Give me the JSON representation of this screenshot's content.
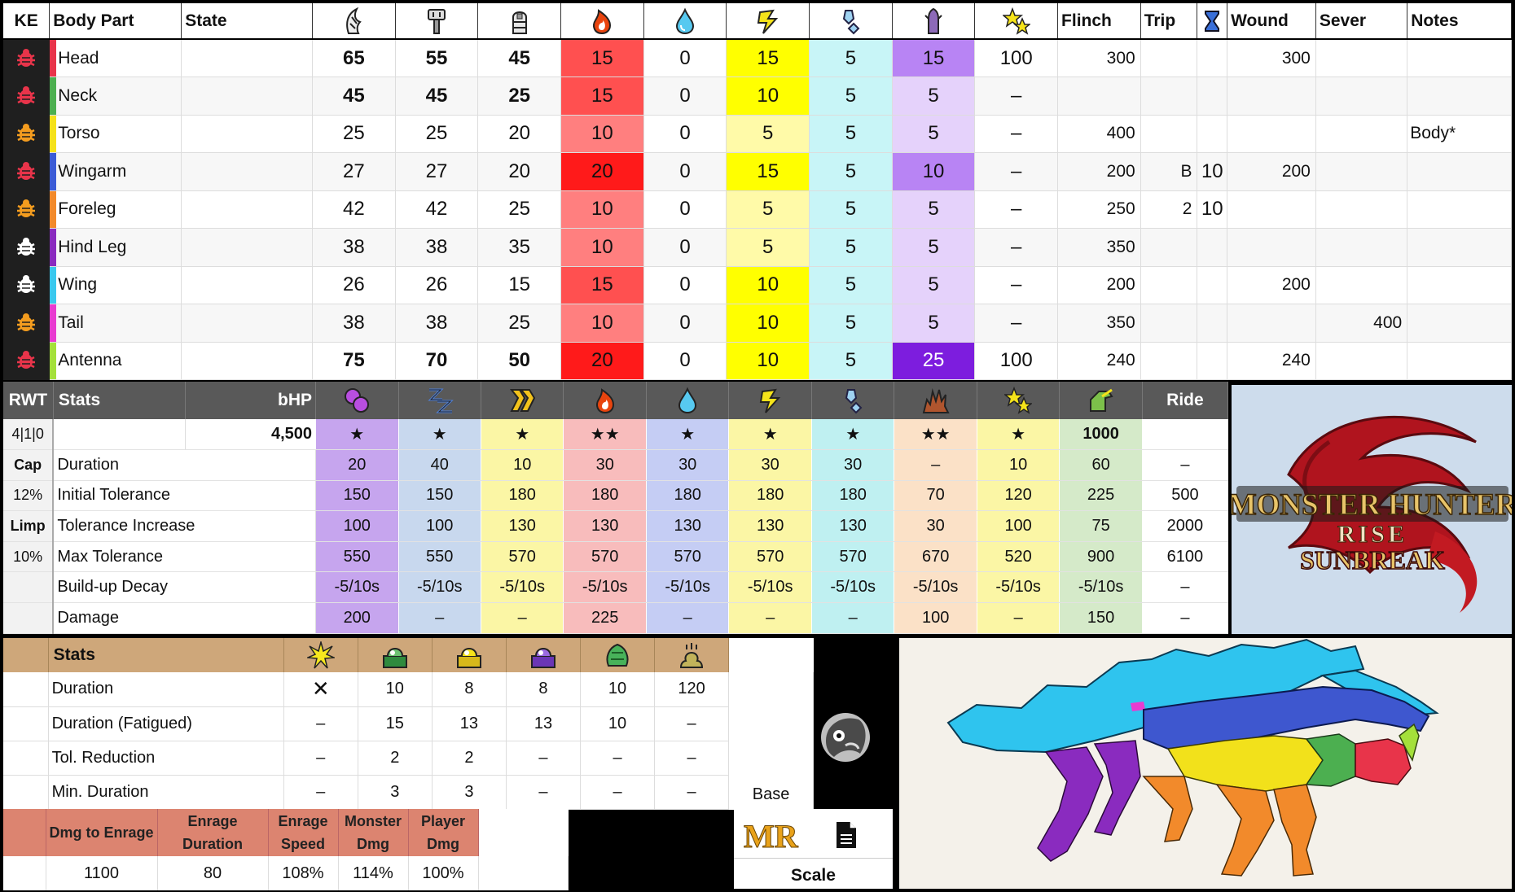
{
  "hitzone": {
    "headers": {
      "ke": "KE",
      "body_part": "Body Part",
      "state": "State",
      "flinch": "Flinch",
      "trip": "Trip",
      "wound": "Wound",
      "sever": "Sever",
      "notes": "Notes"
    },
    "header_icons": [
      "sever-icon",
      "blunt-icon",
      "shot-icon",
      "fire-icon",
      "water-icon",
      "thunder-icon",
      "ice-icon",
      "dragon-icon",
      "stun-icon",
      "exhaust-icon"
    ],
    "rows": [
      {
        "part": "Head",
        "color": "#e8344a",
        "ke_color": "#e8344a",
        "state": "",
        "sever": "65",
        "blunt": "55",
        "shot": "45",
        "fire": "15",
        "water": "0",
        "thunder": "15",
        "ice": "5",
        "dragon": "15",
        "stun": "100",
        "flinch": "300",
        "trip": "",
        "trip_t": "",
        "wound": "300",
        "sever_val": "",
        "notes": "",
        "bold": true
      },
      {
        "part": "Neck",
        "color": "#4caf50",
        "ke_color": "#e8344a",
        "state": "",
        "sever": "45",
        "blunt": "45",
        "shot": "25",
        "fire": "15",
        "water": "0",
        "thunder": "10",
        "ice": "5",
        "dragon": "5",
        "stun": "–",
        "flinch": "",
        "trip": "",
        "trip_t": "",
        "wound": "",
        "sever_val": "",
        "notes": "",
        "bold": true
      },
      {
        "part": "Torso",
        "color": "#f5e11a",
        "ke_color": "#f39c1f",
        "state": "",
        "sever": "25",
        "blunt": "25",
        "shot": "20",
        "fire": "10",
        "water": "0",
        "thunder": "5",
        "ice": "5",
        "dragon": "5",
        "stun": "–",
        "flinch": "400",
        "trip": "",
        "trip_t": "",
        "wound": "",
        "sever_val": "",
        "notes": "Body*",
        "bold": false
      },
      {
        "part": "Wingarm",
        "color": "#3b5bd6",
        "ke_color": "#e8344a",
        "state": "",
        "sever": "27",
        "blunt": "27",
        "shot": "20",
        "fire": "20",
        "water": "0",
        "thunder": "15",
        "ice": "5",
        "dragon": "10",
        "stun": "–",
        "flinch": "200",
        "trip": "B",
        "trip_t": "10",
        "wound": "200",
        "sever_val": "",
        "notes": "",
        "bold": false
      },
      {
        "part": "Foreleg",
        "color": "#f28a2b",
        "ke_color": "#f39c1f",
        "state": "",
        "sever": "42",
        "blunt": "42",
        "shot": "25",
        "fire": "10",
        "water": "0",
        "thunder": "5",
        "ice": "5",
        "dragon": "5",
        "stun": "–",
        "flinch": "250",
        "trip": "2",
        "trip_t": "10",
        "wound": "",
        "sever_val": "",
        "notes": "",
        "bold": false
      },
      {
        "part": "Hind Leg",
        "color": "#8a2bbf",
        "ke_color": "#ffffff",
        "state": "",
        "sever": "38",
        "blunt": "38",
        "shot": "35",
        "fire": "10",
        "water": "0",
        "thunder": "5",
        "ice": "5",
        "dragon": "5",
        "stun": "–",
        "flinch": "350",
        "trip": "",
        "trip_t": "",
        "wound": "",
        "sever_val": "",
        "notes": "",
        "bold": false
      },
      {
        "part": "Wing",
        "color": "#3ac8ee",
        "ke_color": "#ffffff",
        "state": "",
        "sever": "26",
        "blunt": "26",
        "shot": "15",
        "fire": "15",
        "water": "0",
        "thunder": "10",
        "ice": "5",
        "dragon": "5",
        "stun": "–",
        "flinch": "200",
        "trip": "",
        "trip_t": "",
        "wound": "200",
        "sever_val": "",
        "notes": "",
        "bold": false
      },
      {
        "part": "Tail",
        "color": "#e83bd0",
        "ke_color": "#f39c1f",
        "state": "",
        "sever": "38",
        "blunt": "38",
        "shot": "25",
        "fire": "10",
        "water": "0",
        "thunder": "10",
        "ice": "5",
        "dragon": "5",
        "stun": "–",
        "flinch": "350",
        "trip": "",
        "trip_t": "",
        "wound": "",
        "sever_val": "400",
        "notes": "",
        "bold": false
      },
      {
        "part": "Antenna",
        "color": "#a4e03a",
        "ke_color": "#e8344a",
        "state": "",
        "sever": "75",
        "blunt": "70",
        "shot": "50",
        "fire": "20",
        "water": "0",
        "thunder": "10",
        "ice": "5",
        "dragon": "25",
        "stun": "100",
        "flinch": "240",
        "trip": "",
        "trip_t": "",
        "wound": "240",
        "sever_val": "",
        "notes": "",
        "bold": true
      }
    ]
  },
  "status": {
    "headers": {
      "rwt": "RWT",
      "stats": "Stats",
      "bhp": "bHP",
      "ride": "Ride"
    },
    "header_icons": [
      "poison-icon",
      "sleep-icon",
      "paralysis-icon",
      "blast-fire-icon",
      "water-blight-icon",
      "thunder-blight-icon",
      "ice-blight-icon",
      "blast-icon",
      "stun-icon",
      "ride-icon"
    ],
    "col_colors": [
      "#c6a5ee",
      "#c8d8ee",
      "#fbf6a5",
      "#f8bcbc",
      "#c5cdf4",
      "#fbf6a5",
      "#bff0f1",
      "#fbe1c7",
      "#fbf6a5",
      "#d5eac9"
    ],
    "side": [
      "4|1|0",
      "Cap",
      "12%",
      "Limp",
      "10%",
      "",
      ""
    ],
    "side_bold": [
      false,
      true,
      false,
      true,
      false,
      false,
      false
    ],
    "rows": [
      {
        "label": "",
        "hp": "4,500",
        "values": [
          "★",
          "★",
          "★",
          "★★",
          "★",
          "★",
          "★",
          "★★",
          "★",
          "1000"
        ],
        "ride": ""
      },
      {
        "label": "Duration",
        "hp": "",
        "values": [
          "20",
          "40",
          "10",
          "30",
          "30",
          "30",
          "30",
          "–",
          "10",
          "60"
        ],
        "ride": "–"
      },
      {
        "label": "Initial Tolerance",
        "hp": "",
        "values": [
          "150",
          "150",
          "180",
          "180",
          "180",
          "180",
          "180",
          "70",
          "120",
          "225"
        ],
        "ride": "500"
      },
      {
        "label": "Tolerance Increase",
        "hp": "",
        "values": [
          "100",
          "100",
          "130",
          "130",
          "130",
          "130",
          "130",
          "30",
          "100",
          "75"
        ],
        "ride": "2000"
      },
      {
        "label": "Max Tolerance",
        "hp": "",
        "values": [
          "550",
          "550",
          "570",
          "570",
          "570",
          "570",
          "570",
          "670",
          "520",
          "900"
        ],
        "ride": "6100"
      },
      {
        "label": "Build-up Decay",
        "hp": "",
        "values": [
          "-5/10s",
          "-5/10s",
          "-5/10s",
          "-5/10s",
          "-5/10s",
          "-5/10s",
          "-5/10s",
          "-5/10s",
          "-5/10s",
          "-5/10s"
        ],
        "ride": "–"
      },
      {
        "label": "Damage",
        "hp": "",
        "values": [
          "200",
          "–",
          "–",
          "225",
          "–",
          "–",
          "–",
          "100",
          "–",
          "150"
        ],
        "ride": "–"
      }
    ]
  },
  "logo": {
    "line1": "MONSTER HUNTER",
    "line2": "RISE",
    "line3": "SUNBREAK"
  },
  "traps": {
    "header": "Stats",
    "header_icons": [
      "flash-icon",
      "shock-trap-icon",
      "pitfall-trap-icon",
      "sleep-trap-icon",
      "barrel-icon",
      "dung-icon"
    ],
    "rows": [
      {
        "label": "Duration",
        "values": [
          "✕",
          "10",
          "8",
          "8",
          "10",
          "120"
        ]
      },
      {
        "label": "Duration (Fatigued)",
        "values": [
          "–",
          "15",
          "13",
          "13",
          "10",
          "–"
        ]
      },
      {
        "label": "Tol. Reduction",
        "values": [
          "–",
          "2",
          "2",
          "–",
          "–",
          "–"
        ]
      },
      {
        "label": "Min. Duration",
        "values": [
          "–",
          "3",
          "3",
          "–",
          "–",
          "–"
        ]
      }
    ],
    "base_label": "Base"
  },
  "enrage": {
    "headers": [
      "Dmg to Enrage",
      "Enrage Duration",
      "Enrage Speed",
      "Monster Dmg",
      "Player Dmg"
    ],
    "values": [
      "1100",
      "80",
      "108%",
      "114%",
      "100%"
    ]
  },
  "rank": {
    "mr": "MR",
    "scale": "Scale"
  },
  "colors": {
    "fire_hi": "#ff1a1a",
    "fire_mid": "#ff5050",
    "fire_lo": "#ff7f7f",
    "thunder_hi": "#ffff00",
    "thunder_lo": "#fffaa8",
    "ice": "#c8f5f7",
    "dragon_hi": "#7d1dde",
    "dragon_mid": "#b884f4",
    "dragon_lo": "#e5d2fb"
  }
}
